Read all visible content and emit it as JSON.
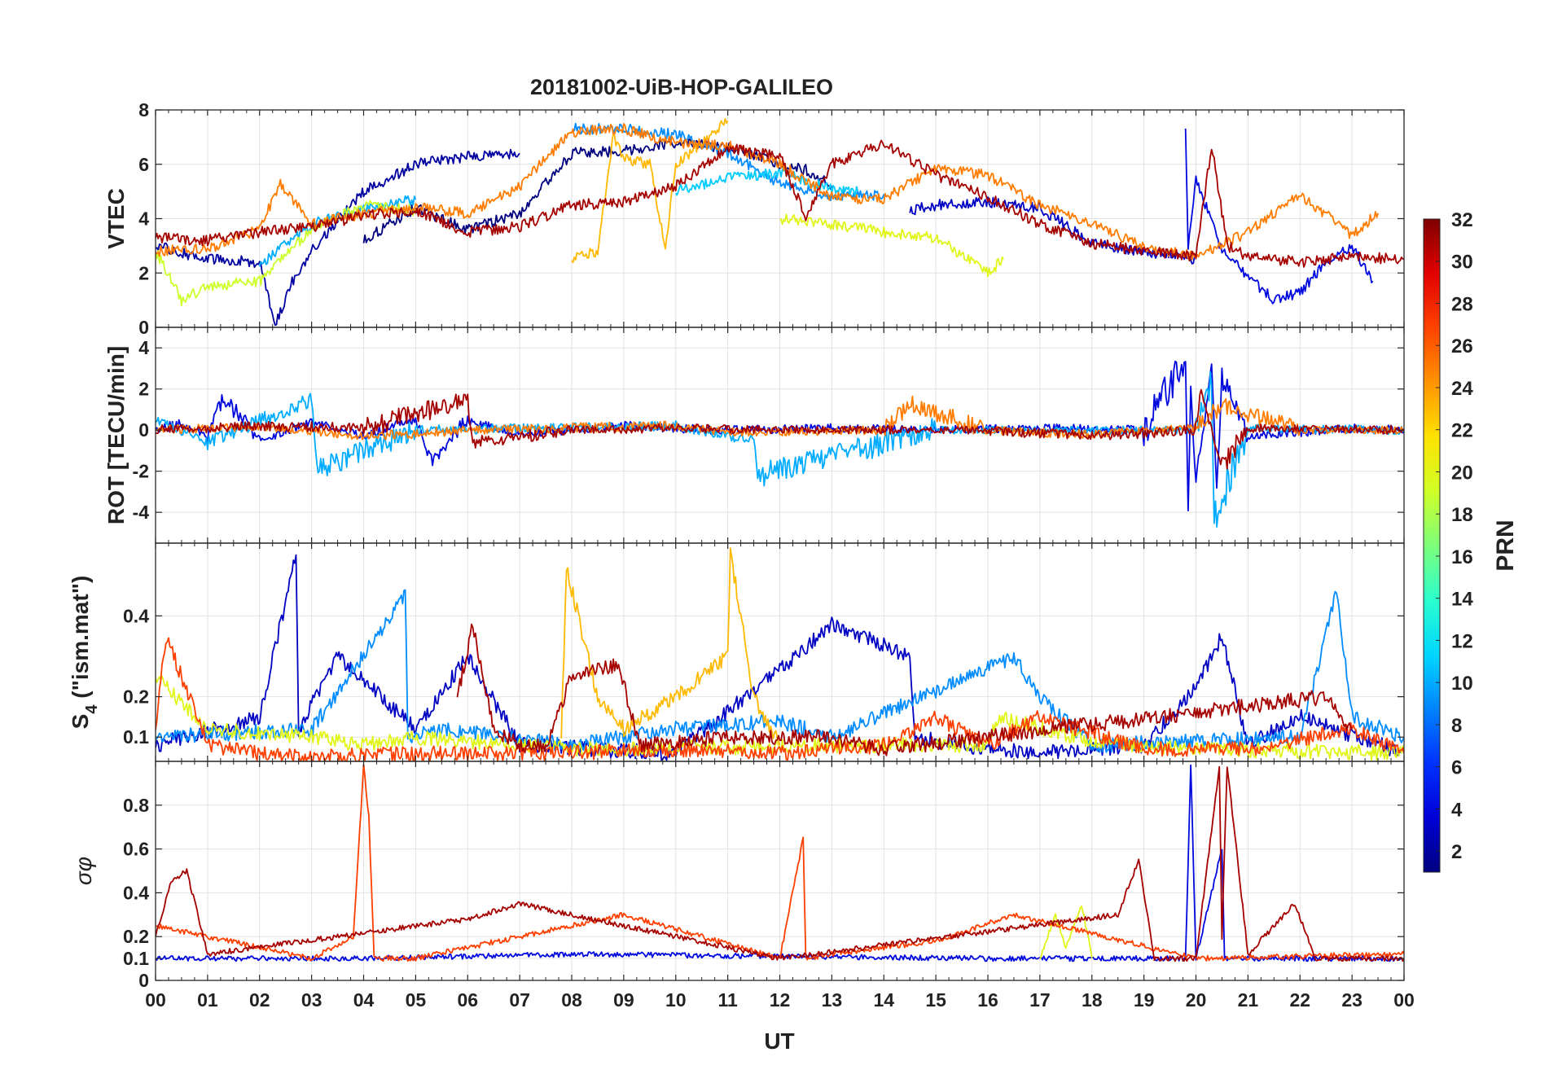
{
  "chart_data": {
    "type": "line",
    "title": "20181002-UiB-HOP-GALILEO",
    "xlabel": "UT",
    "x_ticks": [
      "00",
      "01",
      "02",
      "03",
      "04",
      "05",
      "06",
      "07",
      "08",
      "09",
      "10",
      "11",
      "12",
      "13",
      "14",
      "15",
      "16",
      "17",
      "18",
      "19",
      "20",
      "21",
      "22",
      "23",
      "00"
    ],
    "xlim": [
      0,
      24
    ],
    "colorbar": {
      "label": "PRN",
      "range": [
        1,
        32
      ],
      "ticks": [
        "2",
        "4",
        "6",
        "8",
        "10",
        "12",
        "14",
        "16",
        "18",
        "20",
        "22",
        "24",
        "26",
        "28",
        "30",
        "32"
      ],
      "colormap": [
        "#00007f",
        "#0000d6",
        "#0032ff",
        "#0084ff",
        "#00d6ff",
        "#2bffcd",
        "#7dff7a",
        "#d0ff27",
        "#ffe200",
        "#ff9300",
        "#ff4300",
        "#e10000",
        "#7f0000"
      ]
    },
    "panels": [
      {
        "ylabel": "VTEC",
        "ylim": [
          0,
          8
        ],
        "yticks": [
          0,
          2,
          4,
          6,
          8
        ],
        "series": [
          {
            "prn": 1,
            "x": [
              4.0,
              5.0,
              6.0,
              7.0,
              8.0,
              9.0,
              10.0,
              11.0,
              12.0,
              12.5,
              13.0
            ],
            "y": [
              3.2,
              4.4,
              3.6,
              4.2,
              6.4,
              6.5,
              6.8,
              6.6,
              6.0,
              5.8,
              5.2
            ]
          },
          {
            "prn": 2,
            "x": [
              0.0,
              1.0,
              2.0,
              2.3,
              2.6,
              3.0,
              4.0,
              5.0,
              6.0,
              7.0
            ],
            "y": [
              3.0,
              2.5,
              2.4,
              0.1,
              1.6,
              2.8,
              5.0,
              6.0,
              6.3,
              6.4
            ]
          },
          {
            "prn": 3,
            "x": [
              14.5,
              15.0,
              16.0,
              17.0,
              18.0,
              19.0,
              20.0
            ],
            "y": [
              4.3,
              4.5,
              4.6,
              4.4,
              3.1,
              2.8,
              2.5
            ]
          },
          {
            "prn": 4,
            "x": [
              19.8,
              19.85,
              20.0,
              20.5,
              21.0,
              21.5,
              22.0,
              22.5,
              23.0,
              23.4
            ],
            "y": [
              7.4,
              3.0,
              5.5,
              2.8,
              1.9,
              1.0,
              1.3,
              2.4,
              3.0,
              1.7
            ]
          },
          {
            "prn": 9,
            "x": [
              8.0,
              9.0,
              10.0,
              11.0,
              12.0,
              13.0,
              14.0
            ],
            "y": [
              7.3,
              7.3,
              7.1,
              6.4,
              5.3,
              4.8,
              4.9
            ]
          },
          {
            "prn": 10,
            "x": [
              2.0,
              3.0,
              4.0,
              5.0
            ],
            "y": [
              2.3,
              3.8,
              4.4,
              4.7
            ]
          },
          {
            "prn": 11,
            "x": [
              10.0,
              11.0,
              12.0,
              13.0,
              13.5
            ],
            "y": [
              5.0,
              5.5,
              5.7,
              5.1,
              5.0
            ]
          },
          {
            "prn": 19,
            "x": [
              0.0,
              0.5,
              1.0,
              2.0,
              3.0,
              4.0,
              5.0
            ],
            "y": [
              2.8,
              1.0,
              1.5,
              1.7,
              3.6,
              4.5,
              4.3
            ]
          },
          {
            "prn": 20,
            "x": [
              12.0,
              13.0,
              14.0,
              15.0,
              16.0,
              16.3
            ],
            "y": [
              4.0,
              3.8,
              3.5,
              3.3,
              2.0,
              2.5
            ]
          },
          {
            "prn": 23,
            "x": [
              8.0,
              8.5,
              8.8,
              9.0,
              9.5,
              9.8,
              10.0,
              11.0
            ],
            "y": [
              2.5,
              2.8,
              7.0,
              6.2,
              6.0,
              3.0,
              6.0,
              7.6
            ]
          },
          {
            "prn": 25,
            "x": [
              0.0,
              1.0,
              2.0,
              2.4,
              3.0,
              4.0,
              5.0,
              6.0,
              7.0,
              8.0,
              9.0,
              10.0,
              11.0,
              12.0,
              13.0,
              14.0,
              15.0,
              16.0,
              17.0,
              18.0,
              19.0,
              20.0,
              21.0,
              22.0,
              23.0,
              23.5
            ],
            "y": [
              2.8,
              2.9,
              3.6,
              5.3,
              3.8,
              4.2,
              4.4,
              4.2,
              5.2,
              7.2,
              7.3,
              6.8,
              6.7,
              6.0,
              4.8,
              4.7,
              5.9,
              5.6,
              4.5,
              3.8,
              3.0,
              2.6,
              3.5,
              4.9,
              3.4,
              4.2
            ]
          },
          {
            "prn": 31,
            "x": [
              0.0,
              1.0,
              2.0,
              3.0,
              4.0,
              5.0,
              6.0,
              7.0,
              8.0,
              9.0,
              10.0,
              11.0,
              12.0,
              12.5,
              13.0,
              14.0,
              15.0,
              16.0,
              17.0,
              18.0,
              19.0,
              20.0,
              20.3,
              20.6,
              21.0,
              22.0,
              23.0,
              24.0
            ],
            "y": [
              3.3,
              3.2,
              3.5,
              3.7,
              4.1,
              4.3,
              3.5,
              3.7,
              4.5,
              4.6,
              5.2,
              6.6,
              6.3,
              4.1,
              6.0,
              6.8,
              5.6,
              4.8,
              3.8,
              3.1,
              2.8,
              2.6,
              6.7,
              3.0,
              2.6,
              2.4,
              2.6,
              2.5
            ]
          }
        ]
      },
      {
        "ylabel": "ROT [TECU/min]",
        "ylim": [
          -5.5,
          5
        ],
        "yticks": [
          -4,
          -2,
          0,
          2,
          4
        ],
        "series": [
          {
            "prn": 4,
            "x": [
              0.0,
              0.5,
              1.0,
              1.3,
              2.0,
              3.0,
              4.0,
              5.0,
              5.3,
              6.0,
              7.0,
              9.0,
              11.0,
              13.0,
              15.0,
              17.0,
              19.0,
              19.8,
              19.85,
              19.9,
              20.0,
              20.3,
              20.4,
              20.5,
              21.0,
              23.0,
              24.0
            ],
            "y": [
              0.0,
              0.3,
              -0.4,
              1.6,
              -0.5,
              0.4,
              -0.3,
              0.6,
              -1.5,
              0.5,
              -0.2,
              0.2,
              0.0,
              0.1,
              0.0,
              0.1,
              0.0,
              3.5,
              -4.0,
              2.0,
              -2.5,
              3.2,
              -3.0,
              2.5,
              -0.3,
              0.1,
              0.0
            ]
          },
          {
            "prn": 10,
            "x": [
              0.0,
              1.0,
              3.0,
              3.1,
              5.0,
              10.0,
              11.5,
              11.6,
              15.0,
              20.0,
              20.3,
              20.35,
              21.0,
              24.0
            ],
            "y": [
              0.5,
              -0.6,
              1.5,
              -1.9,
              0.0,
              0.2,
              -0.5,
              -2.2,
              0.0,
              0.0,
              2.5,
              -4.3,
              0.1,
              0.0
            ]
          },
          {
            "prn": 25,
            "x": [
              0.0,
              2.0,
              4.0,
              6.0,
              8.0,
              10.0,
              11.0,
              14.0,
              14.5,
              16.0,
              18.0,
              20.0,
              20.5,
              22.0,
              24.0
            ],
            "y": [
              0.0,
              0.2,
              -0.3,
              0.0,
              0.1,
              0.2,
              -0.1,
              0.0,
              1.3,
              0.0,
              -0.2,
              0.1,
              1.2,
              0.0,
              0.0
            ]
          },
          {
            "prn": 31,
            "x": [
              0.0,
              2.0,
              4.0,
              6.0,
              6.1,
              8.0,
              10.0,
              12.0,
              14.0,
              16.0,
              18.0,
              20.0,
              20.1,
              20.5,
              21.0,
              24.0
            ],
            "y": [
              0.0,
              0.2,
              0.1,
              1.5,
              -0.6,
              0.0,
              0.1,
              0.0,
              0.0,
              0.0,
              -0.3,
              0.0,
              1.8,
              -1.8,
              0.1,
              0.0
            ]
          }
        ]
      },
      {
        "ylabel": "S4 (\"ism.mat\")",
        "ylabel_main": "S",
        "ylabel_sub": "4",
        "ylabel_rest": " (\"ism.mat\")",
        "ylim": [
          0.04,
          0.58
        ],
        "yticks": [
          0.1,
          0.2,
          0.4
        ],
        "series": [
          {
            "prn": 3,
            "x": [
              0.0,
              2.0,
              2.7,
              2.75,
              3.5,
              5.0,
              6.0,
              7.0,
              10.0,
              12.5,
              13.0,
              14.5,
              14.6,
              15.5,
              17.0,
              19.0,
              20.0,
              20.5,
              21.0,
              22.0,
              24.0
            ],
            "y": [
              0.08,
              0.15,
              0.55,
              0.12,
              0.3,
              0.12,
              0.3,
              0.08,
              0.06,
              0.32,
              0.38,
              0.3,
              0.1,
              0.08,
              0.06,
              0.08,
              0.22,
              0.35,
              0.08,
              0.15,
              0.06
            ]
          },
          {
            "prn": 9,
            "x": [
              0.0,
              3.0,
              4.8,
              4.85,
              5.5,
              8.0,
              10.0,
              12.0,
              13.0,
              16.5,
              17.0,
              18.0,
              22.0,
              22.7,
              23.0,
              24.0
            ],
            "y": [
              0.1,
              0.12,
              0.45,
              0.1,
              0.12,
              0.08,
              0.12,
              0.14,
              0.1,
              0.3,
              0.2,
              0.08,
              0.1,
              0.46,
              0.15,
              0.1
            ]
          },
          {
            "prn": 20,
            "x": [
              0.0,
              1.0,
              3.0,
              4.0,
              5.0,
              8.0,
              14.0,
              16.0,
              16.2,
              18.0,
              20.0,
              24.0
            ],
            "y": [
              0.25,
              0.12,
              0.1,
              0.08,
              0.1,
              0.07,
              0.08,
              0.08,
              0.15,
              0.09,
              0.07,
              0.06
            ]
          },
          {
            "prn": 23,
            "x": [
              7.8,
              7.9,
              8.5,
              9.0,
              10.0,
              11.0,
              11.05,
              11.5,
              12.0
            ],
            "y": [
              0.1,
              0.52,
              0.2,
              0.12,
              0.2,
              0.3,
              0.56,
              0.2,
              0.08
            ]
          },
          {
            "prn": 27,
            "x": [
              0.0,
              0.2,
              1.0,
              2.0,
              3.0,
              5.0,
              8.0,
              10.0,
              12.0,
              14.0,
              15.0,
              16.0,
              17.0,
              19.0,
              21.0,
              23.0,
              24.0
            ],
            "y": [
              0.12,
              0.35,
              0.08,
              0.06,
              0.05,
              0.06,
              0.06,
              0.07,
              0.06,
              0.08,
              0.15,
              0.08,
              0.15,
              0.07,
              0.07,
              0.12,
              0.06
            ]
          },
          {
            "prn": 31,
            "x": [
              5.8,
              6.1,
              6.5,
              7.0,
              7.5,
              8.0,
              8.9,
              9.3,
              11.0,
              13.0,
              14.0,
              22.5,
              23.0
            ],
            "y": [
              0.2,
              0.38,
              0.12,
              0.08,
              0.08,
              0.25,
              0.28,
              0.08,
              0.1,
              0.1,
              0.07,
              0.2,
              0.12
            ]
          }
        ]
      },
      {
        "ylabel": "σφ",
        "ylim": [
          0,
          1
        ],
        "yticks": [
          0,
          0.1,
          0.2,
          0.4,
          0.6,
          0.8
        ],
        "series": [
          {
            "prn": 4,
            "x": [
              0.0,
              4.0,
              8.0,
              12.0,
              16.0,
              19.8,
              19.9,
              20.0,
              20.5,
              20.55,
              21.0,
              24.0
            ],
            "y": [
              0.1,
              0.1,
              0.12,
              0.11,
              0.1,
              0.1,
              0.99,
              0.1,
              0.6,
              0.1,
              0.1,
              0.1
            ]
          },
          {
            "prn": 20,
            "x": [
              17.0,
              17.3,
              17.5,
              17.8,
              18.0
            ],
            "y": [
              0.1,
              0.3,
              0.15,
              0.35,
              0.1
            ]
          },
          {
            "prn": 27,
            "x": [
              0.0,
              3.0,
              3.8,
              4.0,
              4.1,
              4.2,
              5.0,
              9.0,
              12.0,
              12.45,
              12.5,
              13.0,
              15.0,
              16.5,
              20.0,
              24.0
            ],
            "y": [
              0.25,
              0.1,
              0.2,
              0.98,
              0.75,
              0.1,
              0.1,
              0.3,
              0.1,
              0.65,
              0.1,
              0.12,
              0.18,
              0.3,
              0.1,
              0.12
            ]
          },
          {
            "prn": 31,
            "x": [
              0.0,
              0.3,
              0.6,
              1.0,
              6.0,
              7.0,
              12.0,
              18.5,
              18.9,
              19.2,
              20.0,
              20.45,
              20.5,
              20.6,
              21.0,
              21.9,
              22.3,
              24.0
            ],
            "y": [
              0.2,
              0.45,
              0.5,
              0.12,
              0.28,
              0.35,
              0.1,
              0.3,
              0.55,
              0.1,
              0.1,
              0.98,
              0.2,
              0.98,
              0.12,
              0.35,
              0.1,
              0.1
            ]
          }
        ]
      }
    ]
  }
}
